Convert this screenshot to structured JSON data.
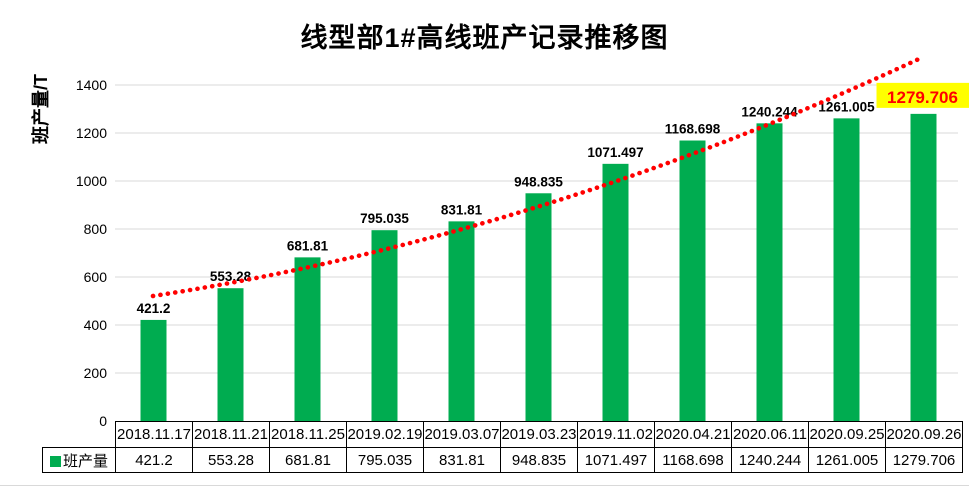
{
  "title": "线型部1#高线班产记录推移图",
  "y_axis": {
    "label": "班产量/T",
    "ticks": [
      0,
      200,
      400,
      600,
      800,
      1000,
      1200,
      1400
    ]
  },
  "legend": {
    "series_label": "班产量"
  },
  "chart_data": {
    "type": "bar",
    "title": "线型部1#高线班产记录推移图",
    "xlabel": "",
    "ylabel": "班产量/T",
    "ylim": [
      0,
      1400
    ],
    "grid": "horizontal",
    "legend_position": "table-left",
    "categories": [
      "2018.11.17",
      "2018.11.21",
      "2018.11.25",
      "2019.02.19",
      "2019.03.07",
      "2019.03.23",
      "2019.11.02",
      "2020.04.21",
      "2020.06.11",
      "2020.09.25",
      "2020.09.26"
    ],
    "series": [
      {
        "name": "班产量",
        "values": [
          421.2,
          553.28,
          681.81,
          795.035,
          831.81,
          948.835,
          1071.497,
          1168.698,
          1240.244,
          1261.005,
          1279.706
        ]
      }
    ],
    "data_labels": [
      "421.2",
      "553.28",
      "681.81",
      "795.035",
      "831.81",
      "948.835",
      "1071.497",
      "1168.698",
      "1240.244",
      "1261.005",
      "1279.706"
    ],
    "highlight_last_label": true,
    "trendline": {
      "style": "dotted",
      "shape": "upward curve across all bars"
    },
    "colors": {
      "bar": "#00AC50",
      "trendline": "#FF0000",
      "grid": "#D9D9D9",
      "highlight_bg": "#FFFF00",
      "highlight_text": "#FF0000",
      "label_text": "#000000"
    }
  }
}
